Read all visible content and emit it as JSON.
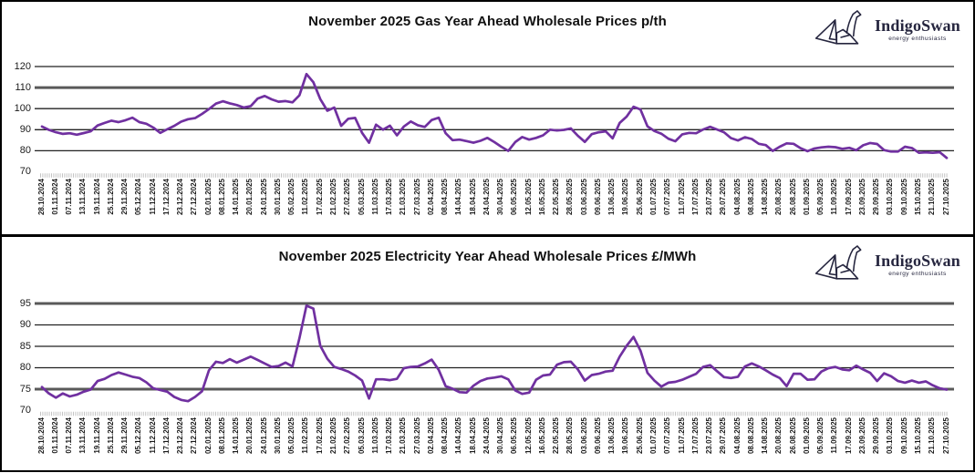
{
  "page": {
    "background": "#ffffff",
    "border_color": "#000000"
  },
  "logo": {
    "brand": "IndigoSwan",
    "tagline": "energy enthusiasts",
    "color": "#26263f"
  },
  "chart_data": [
    {
      "type": "line",
      "panel": "gas",
      "title": "November 2025 Gas Year Ahead Wholesale Prices p/th",
      "unit": "p/th",
      "ylabel": "",
      "xlabel": "",
      "ylim": [
        70,
        120
      ],
      "y_ticks": [
        70,
        80,
        90,
        100,
        110,
        120
      ],
      "emphasized_gridlines": [
        110
      ],
      "grid": "horizontal",
      "legend": "none",
      "line_color": "#7030A0",
      "x_labels": [
        "28.10.2024",
        "01.11.2024",
        "07.11.2024",
        "13.11.2024",
        "19.11.2024",
        "25.11.2024",
        "29.11.2024",
        "05.12.2024",
        "11.12.2024",
        "17.12.2024",
        "23.12.2024",
        "27.12.2024",
        "02.01.2025",
        "08.01.2025",
        "14.01.2025",
        "20.01.2025",
        "24.01.2025",
        "30.01.2025",
        "05.02.2025",
        "11.02.2025",
        "17.02.2025",
        "21.02.2025",
        "27.02.2025",
        "05.03.2025",
        "11.03.2025",
        "17.03.2025",
        "21.03.2025",
        "27.03.2025",
        "02.04.2025",
        "08.04.2025",
        "14.04.2025",
        "18.04.2025",
        "24.04.2025",
        "30.04.2025",
        "06.05.2025",
        "12.05.2025",
        "16.05.2025",
        "22.05.2025",
        "28.05.2025",
        "03.06.2025",
        "09.06.2025",
        "13.06.2025",
        "19.06.2025",
        "25.06.2025",
        "01.07.2025",
        "07.07.2025",
        "11.07.2025",
        "17.07.2025",
        "23.07.2025",
        "29.07.2025",
        "04.08.2025",
        "08.08.2025",
        "14.08.2025",
        "20.08.2025",
        "26.08.2025",
        "01.09.2025",
        "05.09.2025",
        "11.09.2025",
        "17.09.2025",
        "23.09.2025",
        "29.09.2025",
        "03.10.2025",
        "09.10.2025",
        "15.10.2025",
        "21.10.2025",
        "27.10.2025"
      ],
      "values": [
        91.5,
        89.9,
        88.8,
        88.0,
        88.3,
        87.6,
        88.4,
        89.2,
        92.0,
        93.2,
        94.3,
        93.6,
        94.5,
        95.7,
        93.6,
        92.8,
        91.0,
        88.5,
        90.2,
        91.8,
        93.8,
        95.0,
        95.5,
        97.5,
        99.8,
        102.4,
        103.5,
        102.5,
        101.7,
        100.5,
        101.2,
        104.8,
        106.0,
        104.4,
        103.3,
        103.6,
        103.0,
        106.3,
        116.4,
        112.5,
        104.5,
        99.0,
        100.5,
        91.8,
        95.2,
        95.6,
        88.5,
        83.8,
        92.4,
        90.0,
        91.9,
        87.3,
        91.5,
        93.9,
        92.1,
        91.3,
        94.6,
        95.7,
        88.3,
        85.0,
        85.3,
        84.6,
        83.8,
        84.7,
        86.1,
        84.1,
        81.9,
        79.9,
        84.1,
        86.5,
        85.3,
        86.1,
        87.3,
        90.0,
        89.6,
        89.9,
        90.6,
        87.1,
        84.2,
        87.9,
        88.8,
        89.2,
        85.9,
        93.2,
        96.2,
        100.9,
        99.6,
        91.6,
        89.4,
        88.1,
        85.7,
        84.5,
        87.8,
        88.5,
        88.3,
        90.1,
        91.4,
        90.1,
        88.8,
        86.0,
        84.9,
        86.4,
        85.6,
        83.3,
        82.7,
        79.9,
        81.9,
        83.5,
        83.3,
        81.2,
        79.8,
        81.1,
        81.6,
        81.9,
        81.7,
        80.9,
        81.4,
        80.2,
        82.6,
        83.7,
        83.2,
        80.3,
        79.6,
        79.6,
        81.9,
        81.3,
        79.0,
        79.2,
        79.0,
        79.3,
        76.6
      ]
    },
    {
      "type": "line",
      "panel": "electricity",
      "title": "November 2025 Electricity Year Ahead Wholesale Prices £/MWh",
      "unit": "£/MWh",
      "ylabel": "",
      "xlabel": "",
      "ylim": [
        70,
        95
      ],
      "y_ticks": [
        70,
        75,
        80,
        85,
        90,
        95
      ],
      "emphasized_gridlines": [
        95,
        75
      ],
      "grid": "horizontal",
      "legend": "none",
      "line_color": "#7030A0",
      "x_labels": [
        "28.10.2024",
        "01.11.2024",
        "07.11.2024",
        "13.11.2024",
        "19.11.2024",
        "25.11.2024",
        "29.11.2024",
        "05.12.2024",
        "11.12.2024",
        "17.12.2024",
        "23.12.2024",
        "27.12.2024",
        "02.01.2025",
        "08.01.2025",
        "14.01.2025",
        "20.01.2025",
        "24.01.2025",
        "30.01.2025",
        "05.02.2025",
        "11.02.2025",
        "17.02.2025",
        "21.02.2025",
        "27.02.2025",
        "05.03.2025",
        "11.03.2025",
        "17.03.2025",
        "21.03.2025",
        "27.03.2025",
        "02.04.2025",
        "08.04.2025",
        "14.04.2025",
        "18.04.2025",
        "24.04.2025",
        "30.04.2025",
        "06.05.2025",
        "12.05.2025",
        "16.05.2025",
        "22.05.2025",
        "28.05.2025",
        "03.06.2025",
        "09.06.2025",
        "13.06.2025",
        "19.06.2025",
        "25.06.2025",
        "01.07.2025",
        "07.07.2025",
        "11.07.2025",
        "17.07.2025",
        "23.07.2025",
        "29.07.2025",
        "04.08.2025",
        "08.08.2025",
        "14.08.2025",
        "20.08.2025",
        "26.08.2025",
        "01.09.2025",
        "05.09.2025",
        "11.09.2025",
        "17.09.2025",
        "23.09.2025",
        "29.09.2025",
        "03.10.2025",
        "09.10.2025",
        "15.10.2025",
        "21.10.2025",
        "27.10.2025"
      ],
      "values": [
        75.5,
        74.0,
        73.0,
        74.0,
        73.3,
        73.7,
        74.4,
        74.9,
        76.9,
        77.4,
        78.3,
        78.9,
        78.4,
        77.9,
        77.6,
        76.6,
        75.2,
        74.8,
        74.4,
        73.2,
        72.5,
        72.2,
        73.2,
        74.5,
        79.4,
        81.4,
        81.1,
        82.0,
        81.2,
        81.9,
        82.6,
        81.8,
        81.0,
        80.2,
        80.4,
        81.2,
        80.3,
        86.9,
        94.5,
        93.8,
        85.1,
        82.1,
        80.2,
        79.7,
        79.1,
        78.2,
        77.0,
        72.8,
        77.3,
        77.3,
        77.1,
        77.4,
        79.9,
        80.2,
        80.3,
        81.0,
        81.9,
        79.5,
        75.7,
        75.1,
        74.3,
        74.2,
        75.8,
        76.9,
        77.5,
        77.7,
        78.0,
        77.3,
        74.7,
        73.9,
        74.2,
        77.2,
        78.2,
        78.4,
        80.7,
        81.3,
        81.4,
        79.6,
        77.0,
        78.3,
        78.6,
        79.1,
        79.3,
        82.6,
        85.1,
        87.2,
        84.0,
        78.8,
        77.0,
        75.6,
        76.5,
        76.7,
        77.2,
        77.9,
        78.6,
        80.2,
        80.6,
        79.2,
        77.8,
        77.6,
        77.9,
        80.3,
        81.0,
        80.3,
        79.4,
        78.4,
        77.6,
        75.7,
        78.6,
        78.6,
        77.2,
        77.3,
        79.1,
        79.9,
        80.2,
        79.6,
        79.4,
        80.5,
        79.6,
        78.8,
        76.9,
        78.7,
        78.0,
        76.9,
        76.5,
        77.0,
        76.5,
        76.8,
        75.9,
        75.2,
        74.9
      ]
    }
  ]
}
